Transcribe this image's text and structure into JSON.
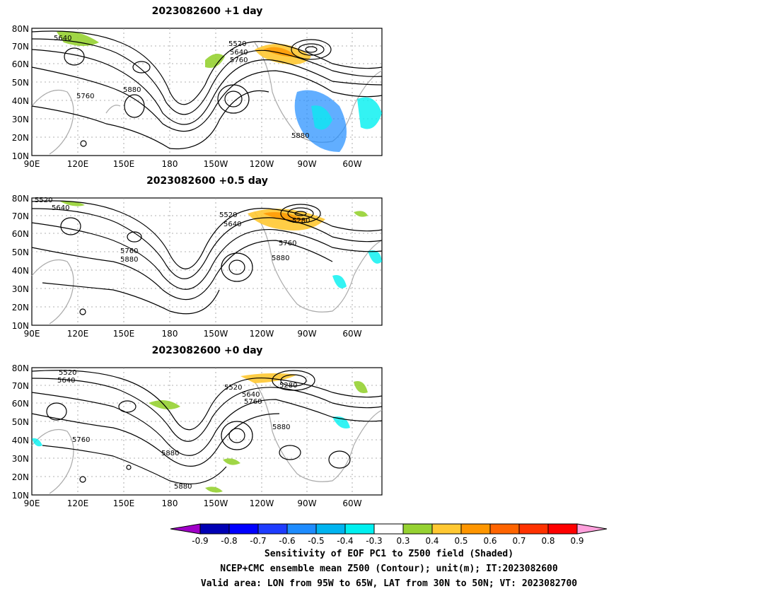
{
  "chart_data": [
    {
      "type": "map",
      "title": "2023082600  +1 day",
      "lon_ticks": [
        "90E",
        "120E",
        "150E",
        "180",
        "150W",
        "120W",
        "90W",
        "60W"
      ],
      "lat_ticks": [
        "10N",
        "20N",
        "30N",
        "40N",
        "50N",
        "60N",
        "70N",
        "80N"
      ],
      "contour_labels": [
        "5640",
        "5520",
        "5640",
        "5760",
        "5760",
        "5880",
        "5880"
      ]
    },
    {
      "type": "map",
      "title": "2023082600  +0.5 day",
      "lon_ticks": [
        "90E",
        "120E",
        "150E",
        "180",
        "150W",
        "120W",
        "90W",
        "60W"
      ],
      "lat_ticks": [
        "10N",
        "20N",
        "30N",
        "40N",
        "50N",
        "60N",
        "70N",
        "80N"
      ],
      "contour_labels": [
        "5520",
        "5640",
        "5520",
        "5640",
        "5280",
        "5760",
        "5880",
        "5760",
        "5880"
      ]
    },
    {
      "type": "map",
      "title": "2023082600  +0 day",
      "lon_ticks": [
        "90E",
        "120E",
        "150E",
        "180",
        "150W",
        "120W",
        "90W",
        "60W"
      ],
      "lat_ticks": [
        "10N",
        "20N",
        "30N",
        "40N",
        "50N",
        "60N",
        "70N",
        "80N"
      ],
      "contour_labels": [
        "5520",
        "5640",
        "5520",
        "5640",
        "5760",
        "5280",
        "5880",
        "5760",
        "5880",
        "5880"
      ]
    }
  ],
  "colorbar": {
    "ticks": [
      "-0.9",
      "-0.8",
      "-0.7",
      "-0.6",
      "-0.5",
      "-0.4",
      "-0.3",
      "0.3",
      "0.4",
      "0.5",
      "0.6",
      "0.7",
      "0.8",
      "0.9"
    ],
    "colors": [
      "#a000c8",
      "#0000b4",
      "#0000ff",
      "#1e3cff",
      "#1e8cff",
      "#00b4f0",
      "#00f0f0",
      "#ffffff",
      "#96d232",
      "#ffc832",
      "#ff9600",
      "#ff6400",
      "#ff3200",
      "#ff0000",
      "#ffa0dc"
    ]
  },
  "footer": {
    "line1": "Sensitivity of EOF PC1 to Z500 field (Shaded)",
    "line2": "NCEP+CMC ensemble mean Z500 (Contour); unit(m); IT:2023082600",
    "line3": "Valid area: LON from 95W to 65W, LAT from 30N to 50N; VT: 2023082700"
  }
}
